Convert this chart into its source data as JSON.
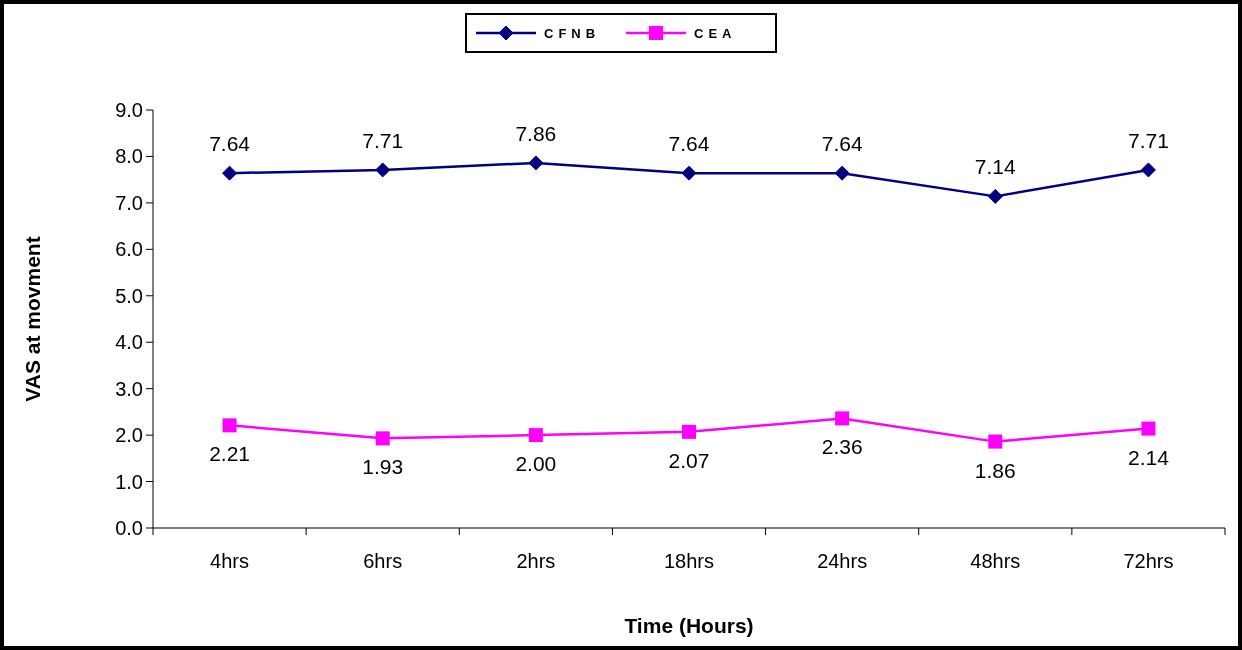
{
  "chart_data": {
    "type": "line",
    "xlabel": "Time (Hours)",
    "ylabel": "VAS at movment",
    "categories": [
      "4hrs",
      "6hrs",
      "2hrs",
      "18hrs",
      "24hrs",
      "48hrs",
      "72hrs"
    ],
    "series": [
      {
        "name": "CFNB",
        "color": "#000080",
        "marker": "diamond",
        "values": [
          7.64,
          7.71,
          7.86,
          7.64,
          7.64,
          7.14,
          7.71
        ],
        "value_labels": [
          "7.64",
          "7.71",
          "7.86",
          "7.64",
          "7.64",
          "7.14",
          "7.71"
        ]
      },
      {
        "name": "CEA",
        "color": "#ff00ff",
        "marker": "square",
        "values": [
          2.21,
          1.93,
          2.0,
          2.07,
          2.36,
          1.86,
          2.14
        ],
        "value_labels": [
          "2.21",
          "1.93",
          "2.00",
          "2.07",
          "2.36",
          "1.86",
          "2.14"
        ]
      }
    ],
    "ylim": [
      0,
      9
    ],
    "yticks": [
      {
        "value": 0,
        "label": "0.0"
      },
      {
        "value": 1,
        "label": "1.0"
      },
      {
        "value": 2,
        "label": "2.0"
      },
      {
        "value": 3,
        "label": "3.0"
      },
      {
        "value": 4,
        "label": "4.0"
      },
      {
        "value": 5,
        "label": "5.0"
      },
      {
        "value": 6,
        "label": "6.0"
      },
      {
        "value": 7,
        "label": "7.0"
      },
      {
        "value": 8,
        "label": "8.0"
      },
      {
        "value": 9,
        "label": "9.0"
      }
    ],
    "grid": false,
    "legend": "top",
    "line_style": "solid"
  }
}
